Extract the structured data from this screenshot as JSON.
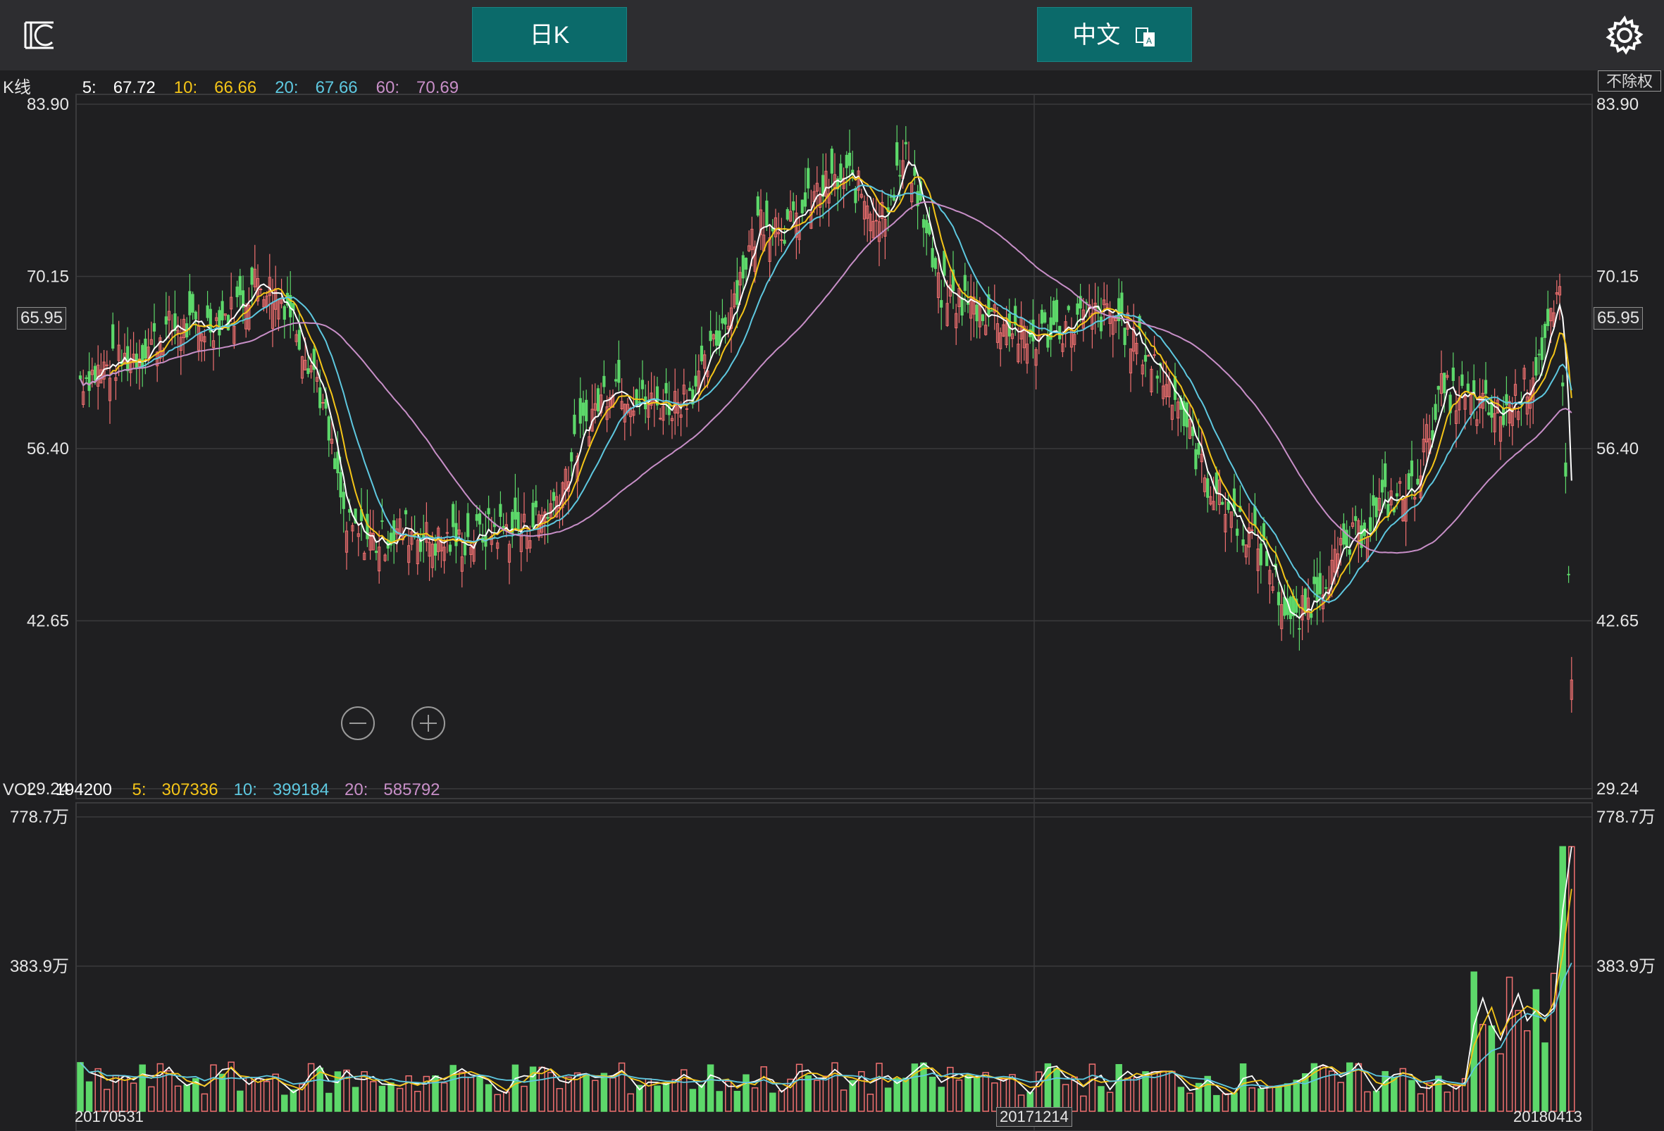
{
  "header": {
    "period_button": "日K",
    "language_button": "中文",
    "logo_icon": "app-logo-icon",
    "settings_icon": "gear-icon"
  },
  "kline": {
    "label": "K线",
    "ma": [
      {
        "name": "5:",
        "value": "67.72",
        "color": "#ffffff"
      },
      {
        "name": "10:",
        "value": "66.66",
        "color": "#f5c518"
      },
      {
        "name": "20:",
        "value": "67.66",
        "color": "#5ec8e0"
      },
      {
        "name": "60:",
        "value": "70.69",
        "color": "#c88fc8"
      }
    ],
    "adjust_label": "不除权",
    "current_price": "65.95",
    "y_ticks": [
      "83.90",
      "70.15",
      "56.40",
      "42.65",
      "29.24"
    ]
  },
  "volume": {
    "label": "VOL",
    "value": "194200",
    "ma": [
      {
        "name": "5:",
        "value": "307336",
        "color": "#f5c518"
      },
      {
        "name": "10:",
        "value": "399184",
        "color": "#5ec8e0"
      },
      {
        "name": "20:",
        "value": "585792",
        "color": "#c88fc8"
      }
    ],
    "y_ticks": [
      "778.7万",
      "383.9万"
    ]
  },
  "dates": {
    "start": "20170531",
    "middle": "20171214",
    "end": "20180413"
  },
  "colors": {
    "up": "#f07070",
    "down": "#5dd86a",
    "background": "#1f1f21",
    "grid": "#3a3a3c"
  },
  "chart_data": {
    "type": "candlestick",
    "y_range": [
      29.24,
      83.9
    ],
    "close_path": [
      [
        0,
        62
      ],
      [
        10,
        63
      ],
      [
        20,
        64
      ],
      [
        30,
        66
      ],
      [
        40,
        66
      ],
      [
        50,
        67
      ],
      [
        60,
        70
      ],
      [
        70,
        68
      ],
      [
        80,
        62
      ],
      [
        90,
        50
      ],
      [
        100,
        49
      ],
      [
        110,
        50
      ],
      [
        120,
        49
      ],
      [
        130,
        49
      ],
      [
        140,
        50
      ],
      [
        150,
        50
      ],
      [
        160,
        52
      ],
      [
        170,
        58
      ],
      [
        180,
        62
      ],
      [
        190,
        60
      ],
      [
        200,
        60
      ],
      [
        210,
        62
      ],
      [
        220,
        68
      ],
      [
        230,
        75
      ],
      [
        240,
        74
      ],
      [
        250,
        77
      ],
      [
        260,
        78
      ],
      [
        270,
        75
      ],
      [
        280,
        80
      ],
      [
        290,
        69
      ],
      [
        300,
        68
      ],
      [
        310,
        67
      ],
      [
        320,
        65
      ],
      [
        330,
        66
      ],
      [
        340,
        67
      ],
      [
        350,
        67
      ],
      [
        360,
        64
      ],
      [
        370,
        61
      ],
      [
        380,
        54
      ],
      [
        390,
        51
      ],
      [
        400,
        48
      ],
      [
        410,
        42
      ],
      [
        420,
        46
      ],
      [
        430,
        49
      ],
      [
        440,
        52
      ],
      [
        450,
        53
      ],
      [
        460,
        61
      ],
      [
        470,
        60
      ],
      [
        480,
        59
      ],
      [
        490,
        62
      ],
      [
        500,
        68
      ],
      [
        505,
        32
      ]
    ],
    "volume_ticks": [
      "778.7万",
      "383.9万"
    ]
  }
}
